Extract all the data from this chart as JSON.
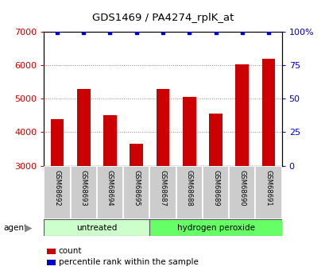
{
  "title": "GDS1469 / PA4274_rplK_at",
  "samples": [
    "GSM68692",
    "GSM68693",
    "GSM68694",
    "GSM68695",
    "GSM68687",
    "GSM68688",
    "GSM68689",
    "GSM68690",
    "GSM68691"
  ],
  "counts": [
    4400,
    5300,
    4500,
    3650,
    5280,
    5060,
    4560,
    6020,
    6180
  ],
  "percentiles": [
    99,
    99,
    99,
    99,
    99,
    99,
    99,
    99,
    99
  ],
  "groups": [
    {
      "label": "untreated",
      "start": 0,
      "end": 4
    },
    {
      "label": "hydrogen peroxide",
      "start": 4,
      "end": 9
    }
  ],
  "group_label": "agent",
  "ylim_left": [
    3000,
    7000
  ],
  "ylim_right": [
    0,
    100
  ],
  "yticks_left": [
    3000,
    4000,
    5000,
    6000,
    7000
  ],
  "yticks_right": [
    0,
    25,
    50,
    75,
    100
  ],
  "bar_color": "#cc0000",
  "dot_color": "#0000cc",
  "group_color_untreated": "#ccffcc",
  "group_color_peroxide": "#66ff66",
  "label_bg_color": "#cccccc",
  "background_color": "#ffffff",
  "legend_count_label": "count",
  "legend_pct_label": "percentile rank within the sample"
}
